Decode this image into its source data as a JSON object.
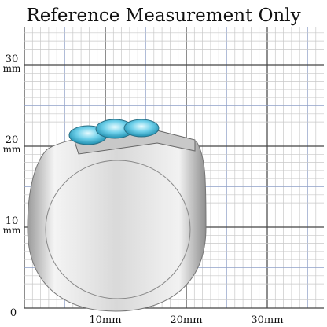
{
  "title": "Reference Measurement Only",
  "y_labels": [
    {
      "number": "30",
      "unit": "mm"
    },
    {
      "number": "20",
      "unit": "mm"
    },
    {
      "number": "10",
      "unit": "mm"
    }
  ],
  "origin": "0",
  "x_labels": [
    "10mm",
    "20mm",
    "30mm"
  ]
}
